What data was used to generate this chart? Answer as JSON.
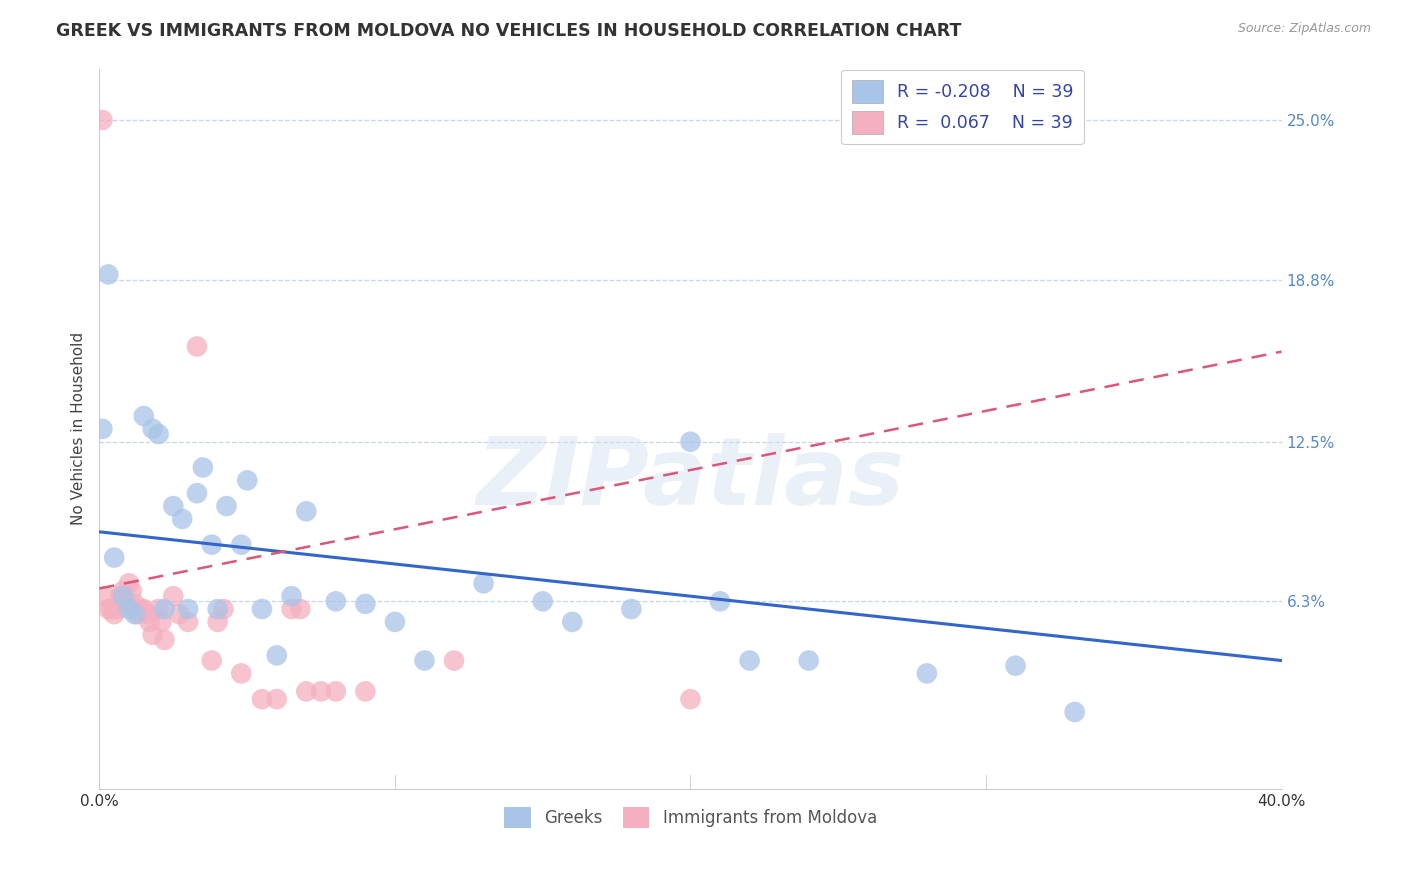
{
  "title": "GREEK VS IMMIGRANTS FROM MOLDOVA NO VEHICLES IN HOUSEHOLD CORRELATION CHART",
  "source": "Source: ZipAtlas.com",
  "ylabel": "No Vehicles in Household",
  "ytick_labels": [
    "6.3%",
    "12.5%",
    "18.8%",
    "25.0%"
  ],
  "ytick_values": [
    0.063,
    0.125,
    0.188,
    0.25
  ],
  "xlim": [
    0.0,
    0.4
  ],
  "ylim": [
    -0.01,
    0.27
  ],
  "legend_r_blue": "-0.208",
  "legend_r_pink": " 0.067",
  "legend_n": "39",
  "blue_color": "#a8c4e8",
  "pink_color": "#f4afc0",
  "trend_blue_color": "#3366cc",
  "trend_pink_color": "#dd5577",
  "watermark_text": "ZIPatlas",
  "background_color": "#ffffff",
  "grid_color": "#c8d4e8",
  "title_fontsize": 12.5,
  "axis_label_fontsize": 11,
  "tick_fontsize": 11,
  "blue_trend_start_y": 0.09,
  "blue_trend_end_y": 0.04,
  "pink_trend_start_y": 0.068,
  "pink_trend_end_y": 0.16,
  "greek_points_x": [
    0.001,
    0.003,
    0.005,
    0.008,
    0.01,
    0.012,
    0.015,
    0.018,
    0.02,
    0.022,
    0.025,
    0.028,
    0.03,
    0.033,
    0.035,
    0.038,
    0.04,
    0.043,
    0.048,
    0.05,
    0.055,
    0.06,
    0.065,
    0.07,
    0.08,
    0.09,
    0.1,
    0.11,
    0.13,
    0.15,
    0.16,
    0.18,
    0.2,
    0.21,
    0.22,
    0.24,
    0.28,
    0.31,
    0.33
  ],
  "greek_points_y": [
    0.13,
    0.19,
    0.08,
    0.065,
    0.06,
    0.058,
    0.135,
    0.13,
    0.128,
    0.06,
    0.1,
    0.095,
    0.06,
    0.105,
    0.115,
    0.085,
    0.06,
    0.1,
    0.085,
    0.11,
    0.06,
    0.042,
    0.065,
    0.098,
    0.063,
    0.062,
    0.055,
    0.04,
    0.07,
    0.063,
    0.055,
    0.06,
    0.125,
    0.063,
    0.04,
    0.04,
    0.035,
    0.038,
    0.02
  ],
  "moldova_points_x": [
    0.001,
    0.002,
    0.003,
    0.004,
    0.005,
    0.006,
    0.007,
    0.008,
    0.009,
    0.01,
    0.011,
    0.012,
    0.013,
    0.014,
    0.015,
    0.016,
    0.017,
    0.018,
    0.02,
    0.021,
    0.022,
    0.025,
    0.027,
    0.03,
    0.033,
    0.038,
    0.04,
    0.042,
    0.048,
    0.055,
    0.06,
    0.065,
    0.068,
    0.07,
    0.075,
    0.08,
    0.09,
    0.12,
    0.2
  ],
  "moldova_points_y": [
    0.25,
    0.065,
    0.06,
    0.06,
    0.058,
    0.06,
    0.065,
    0.067,
    0.062,
    0.07,
    0.067,
    0.062,
    0.058,
    0.06,
    0.06,
    0.058,
    0.055,
    0.05,
    0.06,
    0.055,
    0.048,
    0.065,
    0.058,
    0.055,
    0.162,
    0.04,
    0.055,
    0.06,
    0.035,
    0.025,
    0.025,
    0.06,
    0.06,
    0.028,
    0.028,
    0.028,
    0.028,
    0.04,
    0.025
  ]
}
